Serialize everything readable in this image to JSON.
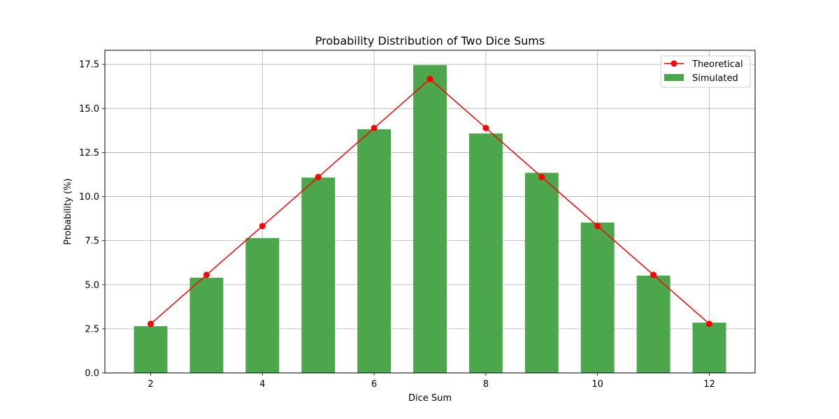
{
  "chart_data": {
    "type": "bar",
    "title": "Probability Distribution of Two Dice Sums",
    "xlabel": "Dice Sum",
    "ylabel": "Probability (%)",
    "xlim": [
      1.18,
      12.82
    ],
    "ylim": [
      0,
      18.3
    ],
    "x_ticks": [
      2,
      4,
      6,
      8,
      10,
      12
    ],
    "y_ticks": [
      0.0,
      2.5,
      5.0,
      7.5,
      10.0,
      12.5,
      15.0,
      17.5
    ],
    "grid": true,
    "legend": "top-right",
    "x": [
      2,
      3,
      4,
      5,
      6,
      7,
      8,
      9,
      10,
      11,
      12
    ],
    "series": [
      {
        "name": "Theoretical",
        "kind": "line",
        "marker": "circle",
        "color": "#ff0000",
        "values": [
          2.78,
          5.56,
          8.33,
          11.11,
          13.89,
          16.67,
          13.89,
          11.11,
          8.33,
          5.56,
          2.78
        ]
      },
      {
        "name": "Simulated",
        "kind": "bar",
        "color": "#4ca64c",
        "values": [
          2.65,
          5.4,
          7.65,
          11.08,
          13.82,
          17.46,
          13.58,
          11.35,
          8.53,
          5.52,
          2.85
        ]
      }
    ]
  }
}
